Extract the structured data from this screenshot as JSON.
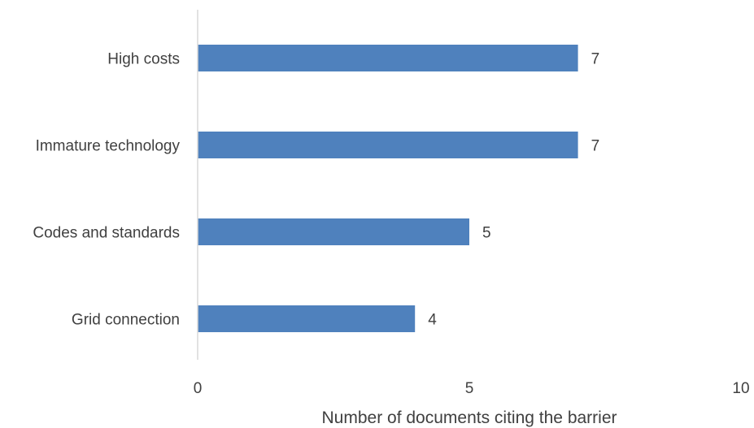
{
  "chart_data": {
    "type": "bar",
    "orientation": "horizontal",
    "categories": [
      "High costs",
      "Immature technology",
      "Codes and standards",
      "Grid connection"
    ],
    "values": [
      7,
      7,
      5,
      4
    ],
    "data_labels": [
      "7",
      "7",
      "5",
      "4"
    ],
    "xlabel": "Number of documents citing the barrier",
    "ylabel": "",
    "xlim": [
      0,
      10
    ],
    "xticks": [
      "0",
      "5",
      "10"
    ],
    "grid": false,
    "legend": "none",
    "bar_color": "#4F81BD",
    "axis_color": "#D9D9D9"
  }
}
